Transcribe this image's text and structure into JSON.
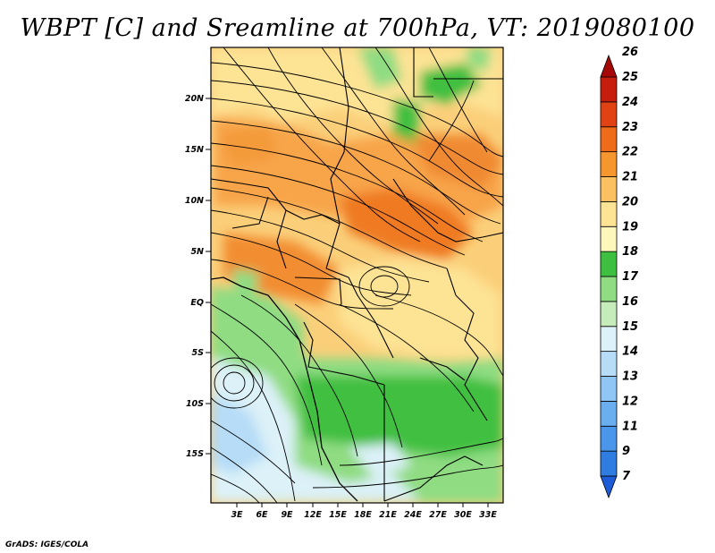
{
  "title": "WBPT [C] and Sreamline at 700hPa, VT: 2019080100",
  "footer": "GrADS: IGES/COLA",
  "map": {
    "lat_ticks": [
      "20N",
      "15N",
      "10N",
      "5N",
      "EQ",
      "5S",
      "10S",
      "15S"
    ],
    "lon_ticks": [
      "3E",
      "6E",
      "9E",
      "12E",
      "15E",
      "18E",
      "21E",
      "24E",
      "27E",
      "30E",
      "33E"
    ]
  },
  "colorbar": {
    "labels": [
      "7",
      "9",
      "11",
      "12",
      "13",
      "14",
      "15",
      "16",
      "17",
      "18",
      "19",
      "20",
      "21",
      "22",
      "23",
      "24",
      "25",
      "26"
    ],
    "colors": [
      "#1e5bd6",
      "#2f7de0",
      "#4a96ea",
      "#6aaef0",
      "#8fc6f5",
      "#b6dcf7",
      "#dcf1f8",
      "#c6ecbc",
      "#8fdc82",
      "#3fbf3f",
      "#fdf7bc",
      "#fde394",
      "#fbc062",
      "#f5962f",
      "#ee6b1a",
      "#e04214",
      "#c71d0e",
      "#a60808"
    ]
  }
}
